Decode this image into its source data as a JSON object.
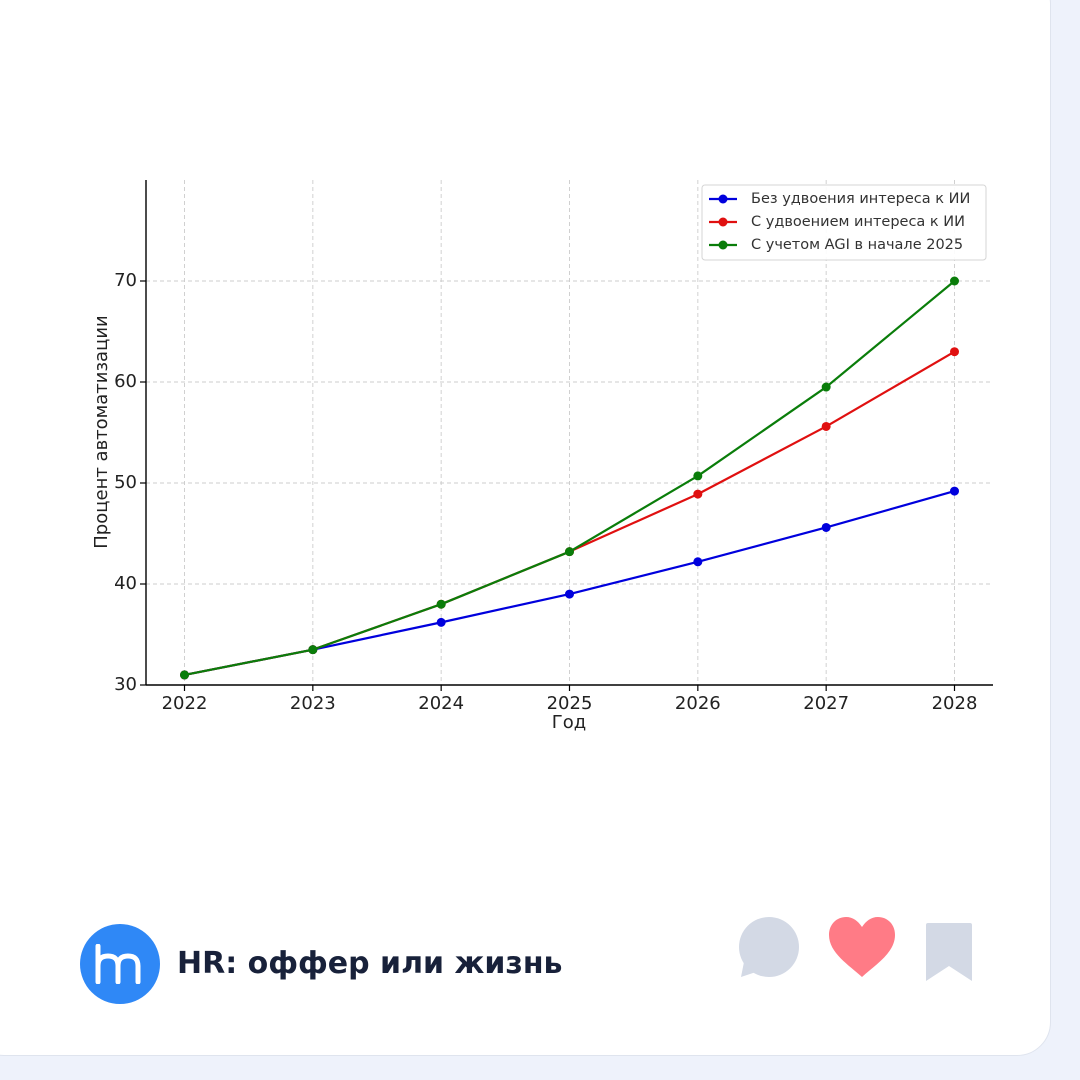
{
  "chart_data": {
    "type": "line",
    "title": "",
    "xlabel": "Год",
    "ylabel": "Процент автоматизации",
    "x": [
      2022,
      2023,
      2024,
      2025,
      2026,
      2027,
      2028
    ],
    "xlim": [
      2021.7,
      2028.3
    ],
    "ylim": [
      30,
      80
    ],
    "yticks": [
      30,
      40,
      50,
      60,
      70
    ],
    "grid": true,
    "legend_position": "top-right",
    "series": [
      {
        "name": "Без удвоения интереса к ИИ",
        "color": "#0000dd",
        "values": [
          31.0,
          33.5,
          36.2,
          39.0,
          42.2,
          45.6,
          49.2
        ]
      },
      {
        "name": "С удвоением интереса к ИИ",
        "color": "#e01010",
        "values": [
          31.0,
          33.5,
          38.0,
          43.2,
          48.9,
          55.6,
          63.0
        ]
      },
      {
        "name": "С учетом AGI в начале 2025",
        "color": "#0a7d0a",
        "values": [
          31.0,
          33.5,
          38.0,
          43.2,
          50.7,
          59.5,
          70.0
        ]
      }
    ]
  },
  "footer": {
    "channel_name": "HR: оффер или жизнь",
    "avatar_icon": "hm-logo-icon",
    "avatar_color": "#2f88f6",
    "actions": [
      {
        "name": "comment",
        "icon": "comment-bubble-icon",
        "color": "#d3d9e5"
      },
      {
        "name": "like",
        "icon": "heart-icon",
        "color": "#ff7b86"
      },
      {
        "name": "bookmark",
        "icon": "bookmark-icon",
        "color": "#d3d9e5"
      }
    ]
  }
}
